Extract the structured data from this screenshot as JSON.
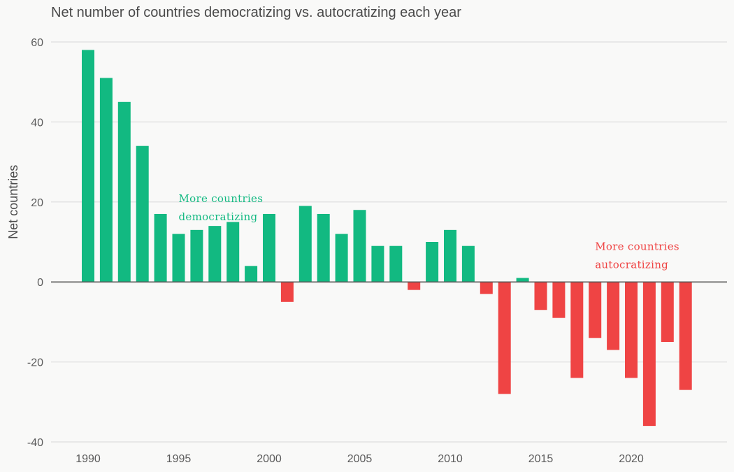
{
  "chart_data": {
    "type": "bar",
    "title": "Net number of countries democratizing vs. autocratizing each year",
    "ylabel": "Net countries",
    "xlabel": "",
    "ylim": [
      -40,
      60
    ],
    "xlim": [
      1989,
      2025
    ],
    "yticks": [
      -40,
      -20,
      0,
      20,
      40,
      60
    ],
    "xticks": [
      1990,
      1995,
      2000,
      2005,
      2010,
      2015,
      2020
    ],
    "grid": "horizontal",
    "colors": {
      "positive": "#12b981",
      "negative": "#ef4444",
      "zero_line": "#555555",
      "grid": "#e3e3e3"
    },
    "x": [
      1990,
      1991,
      1992,
      1993,
      1994,
      1995,
      1996,
      1997,
      1998,
      1999,
      2000,
      2001,
      2002,
      2003,
      2004,
      2005,
      2006,
      2007,
      2008,
      2009,
      2010,
      2011,
      2012,
      2013,
      2014,
      2015,
      2016,
      2017,
      2018,
      2019,
      2020,
      2021,
      2022,
      2023
    ],
    "values": [
      58,
      51,
      45,
      34,
      17,
      12,
      13,
      14,
      15,
      4,
      17,
      -5,
      19,
      17,
      12,
      18,
      9,
      9,
      -2,
      10,
      13,
      9,
      -3,
      -28,
      1,
      -7,
      -9,
      -24,
      -14,
      -17,
      -24,
      -36,
      -15,
      -27
    ],
    "annotations": [
      {
        "lines": [
          "More countries",
          "democratizing"
        ],
        "x": 1995,
        "y": 20,
        "color": "#12b981"
      },
      {
        "lines": [
          "More countries",
          "autocratizing"
        ],
        "x": 2018,
        "y": 8,
        "color": "#ef4444"
      }
    ]
  }
}
